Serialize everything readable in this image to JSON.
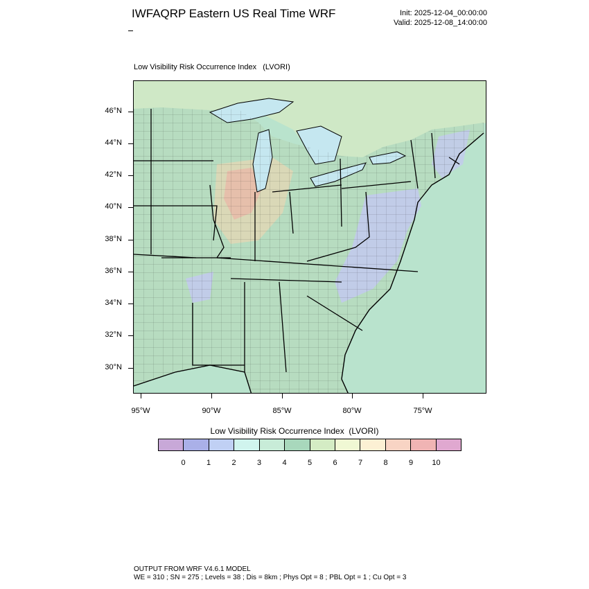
{
  "header": {
    "title": "IWFAQRP Eastern US Real Time WRF",
    "init": "Init: 2025-12-04_00:00:00",
    "valid": "Valid: 2025-12-08_14:00:00"
  },
  "map": {
    "field_label": "Low Visibility Risk Occurrence Index   (LVORI)",
    "lat_labels": [
      "46°N",
      "44°N",
      "42°N",
      "40°N",
      "38°N",
      "36°N",
      "34°N",
      "32°N",
      "30°N"
    ],
    "lon_labels": [
      "95°W",
      "90°W",
      "85°W",
      "80°W",
      "75°W"
    ],
    "colors": {
      "ocean": "#b9e3cd",
      "land_base": "#b7dcc0",
      "lakes": "#c5e7f0",
      "canada": "#cfe8c6",
      "boundaries": "#000000"
    }
  },
  "labelbar": {
    "title": "Low Visibility Risk Occurrence Index  (LVORI)",
    "labels": [
      "0",
      "1",
      "2",
      "3",
      "4",
      "5",
      "6",
      "7",
      "8",
      "9",
      "10"
    ],
    "colors": [
      "#c8a8d8",
      "#aab0e8",
      "#c0d0f4",
      "#d0f4ee",
      "#c8ecd8",
      "#a8d8bc",
      "#d4ecc4",
      "#f0f8d4",
      "#fcf0d4",
      "#f8d4c4",
      "#f0b4b4",
      "#e0a8d0"
    ]
  },
  "footer": {
    "line1": "OUTPUT FROM WRF V4.6.1 MODEL",
    "line2": "WE = 310 ; SN = 275 ; Levels = 38 ; Dis = 8km ; Phys Opt = 8 ; PBL Opt = 1 ; Cu Opt = 3"
  }
}
